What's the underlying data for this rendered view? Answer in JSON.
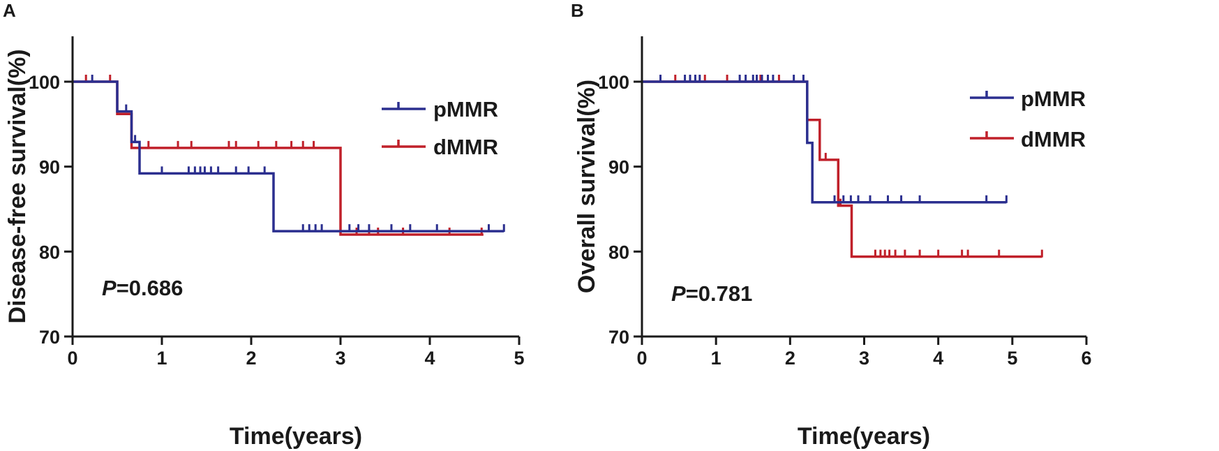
{
  "colors": {
    "pMMR": "#2b2f8f",
    "dMMR": "#c0202a",
    "axis": "#1a1a1a"
  },
  "chart_data": [
    {
      "type": "line",
      "subtype": "kaplan-meier",
      "panel_label": "A",
      "xlabel": "Time(years)",
      "ylabel": "Disease-free survival(%)",
      "xlim": [
        0,
        5
      ],
      "ylim": [
        70,
        105
      ],
      "x_ticks": [
        "0",
        "1",
        "2",
        "3",
        "4",
        "5"
      ],
      "y_ticks": [
        "70",
        "80",
        "90",
        "100"
      ],
      "p_prefix": "P",
      "p_value": "=0.686",
      "legend_position": "top-right",
      "series": [
        {
          "name": "pMMR",
          "steps": [
            [
              0,
              100
            ],
            [
              0.5,
              100
            ],
            [
              0.5,
              96.5
            ],
            [
              0.66,
              96.5
            ],
            [
              0.66,
              92.9
            ],
            [
              0.75,
              92.9
            ],
            [
              0.75,
              89.2
            ],
            [
              2.25,
              89.2
            ],
            [
              2.25,
              82.4
            ],
            [
              4.83,
              82.4
            ]
          ],
          "censored": [
            [
              0.22,
              100
            ],
            [
              0.6,
              96.5
            ],
            [
              0.7,
              92.9
            ],
            [
              1.0,
              89.2
            ],
            [
              1.3,
              89.2
            ],
            [
              1.37,
              89.2
            ],
            [
              1.43,
              89.2
            ],
            [
              1.48,
              89.2
            ],
            [
              1.55,
              89.2
            ],
            [
              1.63,
              89.2
            ],
            [
              1.83,
              89.2
            ],
            [
              1.97,
              89.2
            ],
            [
              2.15,
              89.2
            ],
            [
              2.58,
              82.4
            ],
            [
              2.65,
              82.4
            ],
            [
              2.72,
              82.4
            ],
            [
              2.79,
              82.4
            ],
            [
              3.1,
              82.4
            ],
            [
              3.2,
              82.4
            ],
            [
              3.32,
              82.4
            ],
            [
              3.57,
              82.4
            ],
            [
              3.78,
              82.4
            ],
            [
              4.08,
              82.4
            ],
            [
              4.66,
              82.4
            ],
            [
              4.83,
              82.4
            ]
          ]
        },
        {
          "name": "dMMR",
          "steps": [
            [
              0,
              100
            ],
            [
              0.5,
              100
            ],
            [
              0.5,
              96.2
            ],
            [
              0.66,
              96.2
            ],
            [
              0.66,
              92.2
            ],
            [
              3.0,
              92.2
            ],
            [
              3.0,
              82.0
            ],
            [
              4.6,
              82.0
            ]
          ],
          "censored": [
            [
              0.15,
              100
            ],
            [
              0.42,
              100
            ],
            [
              0.85,
              92.2
            ],
            [
              1.18,
              92.2
            ],
            [
              1.33,
              92.2
            ],
            [
              1.75,
              92.2
            ],
            [
              1.83,
              92.2
            ],
            [
              2.08,
              92.2
            ],
            [
              2.28,
              92.2
            ],
            [
              2.45,
              92.2
            ],
            [
              2.58,
              92.2
            ],
            [
              2.7,
              92.2
            ],
            [
              3.18,
              82.0
            ],
            [
              3.32,
              82.0
            ],
            [
              3.42,
              82.0
            ],
            [
              3.7,
              82.0
            ],
            [
              4.22,
              82.0
            ],
            [
              4.58,
              82.0
            ]
          ]
        }
      ]
    },
    {
      "type": "line",
      "subtype": "kaplan-meier",
      "panel_label": "B",
      "xlabel": "Time(years)",
      "ylabel": "Overall survival(%)",
      "xlim": [
        0,
        6
      ],
      "ylim": [
        70,
        105
      ],
      "x_ticks": [
        "0",
        "1",
        "2",
        "3",
        "4",
        "5",
        "6"
      ],
      "y_ticks": [
        "70",
        "80",
        "90",
        "100"
      ],
      "p_prefix": "P",
      "p_value": "=0.781",
      "legend_position": "top-right",
      "series": [
        {
          "name": "pMMR",
          "steps": [
            [
              0,
              100
            ],
            [
              2.23,
              100
            ],
            [
              2.23,
              92.8
            ],
            [
              2.3,
              92.8
            ],
            [
              2.3,
              85.8
            ],
            [
              4.92,
              85.8
            ]
          ],
          "censored": [
            [
              0.25,
              100
            ],
            [
              0.58,
              100
            ],
            [
              0.65,
              100
            ],
            [
              0.72,
              100
            ],
            [
              0.78,
              100
            ],
            [
              1.32,
              100
            ],
            [
              1.4,
              100
            ],
            [
              1.5,
              100
            ],
            [
              1.55,
              100
            ],
            [
              1.62,
              100
            ],
            [
              1.7,
              100
            ],
            [
              1.77,
              100
            ],
            [
              2.05,
              100
            ],
            [
              2.18,
              100
            ],
            [
              2.6,
              85.8
            ],
            [
              2.72,
              85.8
            ],
            [
              2.82,
              85.8
            ],
            [
              2.92,
              85.8
            ],
            [
              3.08,
              85.8
            ],
            [
              3.32,
              85.8
            ],
            [
              3.5,
              85.8
            ],
            [
              3.75,
              85.8
            ],
            [
              4.65,
              85.8
            ],
            [
              4.92,
              85.8
            ]
          ]
        },
        {
          "name": "dMMR",
          "steps": [
            [
              0,
              100
            ],
            [
              2.23,
              100
            ],
            [
              2.23,
              95.5
            ],
            [
              2.4,
              95.5
            ],
            [
              2.4,
              90.8
            ],
            [
              2.65,
              90.8
            ],
            [
              2.65,
              85.4
            ],
            [
              2.83,
              85.4
            ],
            [
              2.83,
              79.4
            ],
            [
              5.4,
              79.4
            ]
          ],
          "censored": [
            [
              0.45,
              100
            ],
            [
              0.85,
              100
            ],
            [
              1.15,
              100
            ],
            [
              1.6,
              100
            ],
            [
              1.85,
              100
            ],
            [
              2.48,
              90.8
            ],
            [
              2.68,
              85.4
            ],
            [
              3.15,
              79.4
            ],
            [
              3.22,
              79.4
            ],
            [
              3.28,
              79.4
            ],
            [
              3.34,
              79.4
            ],
            [
              3.42,
              79.4
            ],
            [
              3.55,
              79.4
            ],
            [
              3.75,
              79.4
            ],
            [
              4.0,
              79.4
            ],
            [
              4.32,
              79.4
            ],
            [
              4.4,
              79.4
            ],
            [
              4.82,
              79.4
            ],
            [
              5.4,
              79.4
            ]
          ]
        }
      ]
    }
  ]
}
